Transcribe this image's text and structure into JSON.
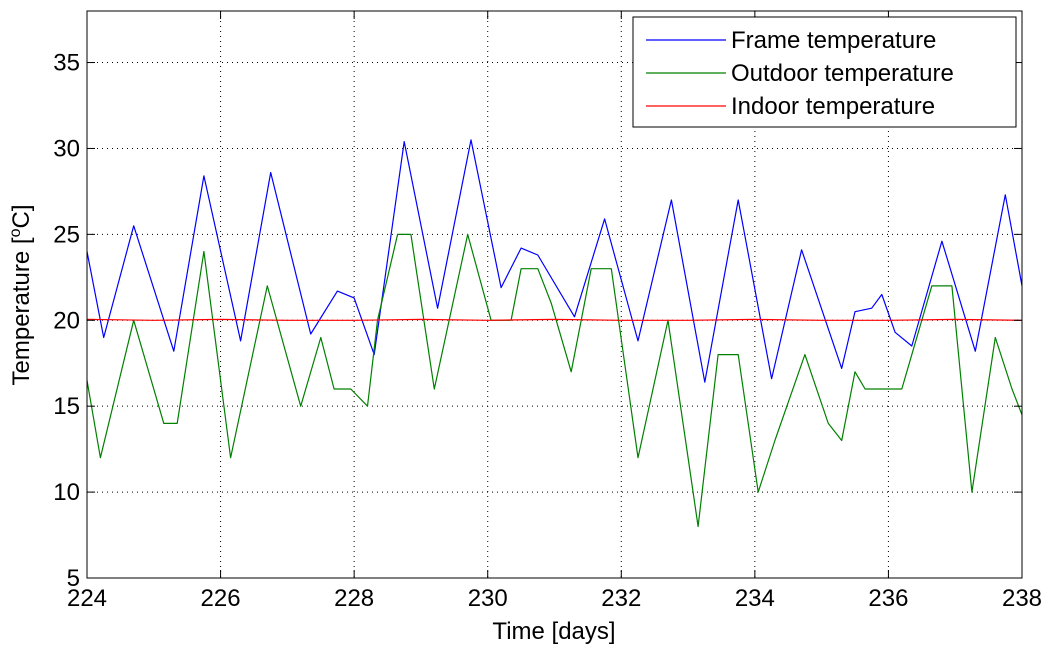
{
  "chart_data": {
    "type": "line",
    "title": "",
    "xlabel": "Time [days]",
    "ylabel_main": "Temperature [",
    "ylabel_sup": "o",
    "ylabel_tail": "C]",
    "xlim": [
      224,
      238
    ],
    "ylim": [
      5,
      38
    ],
    "xticks": [
      224,
      226,
      228,
      230,
      232,
      234,
      236,
      238
    ],
    "yticks": [
      5,
      10,
      15,
      20,
      25,
      30,
      35
    ],
    "grid": true,
    "legend_position": "top-right",
    "series": [
      {
        "name": "Frame temperature",
        "color": "#0000ff",
        "x": [
          224.0,
          224.25,
          224.7,
          225.3,
          225.75,
          226.3,
          226.75,
          227.35,
          227.75,
          228.0,
          228.3,
          228.75,
          229.25,
          229.75,
          230.2,
          230.5,
          230.75,
          231.3,
          231.75,
          232.25,
          232.75,
          233.25,
          233.75,
          234.25,
          234.7,
          235.3,
          235.5,
          235.75,
          235.9,
          236.1,
          236.35,
          236.8,
          237.3,
          237.75,
          238.0
        ],
        "y": [
          24.0,
          19.0,
          25.5,
          18.2,
          28.4,
          18.8,
          28.6,
          19.2,
          21.7,
          21.3,
          18.0,
          30.4,
          20.7,
          30.5,
          21.9,
          24.2,
          23.8,
          20.2,
          25.9,
          18.8,
          27.0,
          16.4,
          27.0,
          16.6,
          24.1,
          17.2,
          20.5,
          20.7,
          21.5,
          19.3,
          18.5,
          24.6,
          18.2,
          27.3,
          22.0
        ]
      },
      {
        "name": "Outdoor temperature",
        "color": "#008000",
        "x": [
          224.0,
          224.2,
          224.7,
          225.15,
          225.35,
          225.75,
          226.15,
          226.7,
          227.2,
          227.5,
          227.7,
          227.95,
          228.2,
          228.35,
          228.65,
          228.85,
          229.2,
          229.7,
          230.05,
          230.35,
          230.5,
          230.75,
          230.95,
          231.25,
          231.55,
          231.85,
          232.25,
          232.7,
          233.15,
          233.45,
          233.75,
          234.05,
          234.3,
          234.75,
          235.1,
          235.3,
          235.5,
          235.65,
          236.0,
          236.2,
          236.65,
          236.95,
          237.25,
          237.6,
          237.85,
          238.0
        ],
        "y": [
          16.5,
          12.0,
          20.0,
          14.0,
          14.0,
          24.0,
          12.0,
          22.0,
          15.0,
          19.0,
          16.0,
          16.0,
          15.0,
          20.0,
          25.0,
          25.0,
          16.0,
          25.0,
          20.0,
          20.0,
          23.0,
          23.0,
          21.0,
          17.0,
          23.0,
          23.0,
          12.0,
          20.0,
          8.0,
          18.0,
          18.0,
          10.0,
          13.0,
          18.0,
          14.0,
          13.0,
          17.0,
          16.0,
          16.0,
          16.0,
          22.0,
          22.0,
          10.0,
          19.0,
          16.0,
          14.5
        ]
      },
      {
        "name": "Indoor temperature",
        "color": "#ff0000",
        "x": [
          224.0,
          225.0,
          226.0,
          227.0,
          228.0,
          229.0,
          230.0,
          231.0,
          232.0,
          233.0,
          234.0,
          235.0,
          236.0,
          237.0,
          238.0
        ],
        "y": [
          20.05,
          20.0,
          20.05,
          20.0,
          20.0,
          20.05,
          20.0,
          20.05,
          20.0,
          20.0,
          20.05,
          20.0,
          20.0,
          20.05,
          20.0
        ]
      }
    ]
  }
}
